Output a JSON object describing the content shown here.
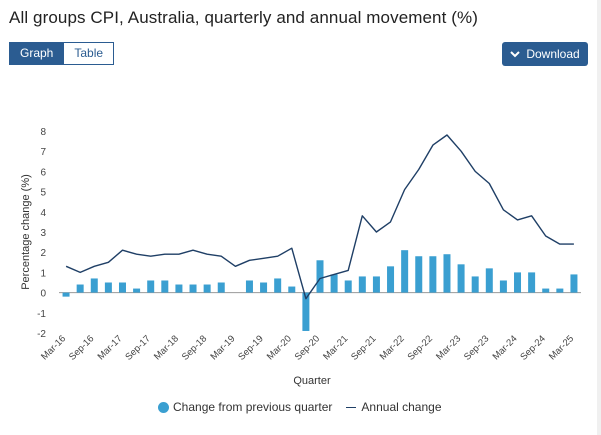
{
  "header": {
    "title": "All groups CPI, Australia, quarterly and annual movement (%)"
  },
  "toggle": {
    "graph_label": "Graph",
    "table_label": "Table"
  },
  "download": {
    "label": "Download",
    "icon": "chevron-down-icon"
  },
  "colors": {
    "accent": "#2b5c91",
    "bar": "#3a9fd1",
    "line": "#1f3f66"
  },
  "chart_data": {
    "type": "bar",
    "ylabel": "Percentage change (%)",
    "xlabel": "Quarter",
    "ylim": [
      -2,
      8
    ],
    "yticks": [
      -2,
      -1,
      0,
      1,
      2,
      3,
      4,
      5,
      6,
      7,
      8
    ],
    "grid": false,
    "legend_position": "bottom",
    "categories": [
      "Mar-16",
      "Jun-16",
      "Sep-16",
      "Dec-16",
      "Mar-17",
      "Jun-17",
      "Sep-17",
      "Dec-17",
      "Mar-18",
      "Jun-18",
      "Sep-18",
      "Dec-18",
      "Mar-19",
      "Jun-19",
      "Sep-19",
      "Dec-19",
      "Mar-20",
      "Jun-20",
      "Sep-20",
      "Dec-20",
      "Mar-21",
      "Jun-21",
      "Sep-21",
      "Dec-21",
      "Mar-22",
      "Jun-22",
      "Sep-22",
      "Dec-22",
      "Mar-23",
      "Jun-23",
      "Sep-23",
      "Dec-23",
      "Mar-24",
      "Jun-24",
      "Sep-24",
      "Dec-24",
      "Mar-25"
    ],
    "tick_labels": [
      "Mar-16",
      "Sep-16",
      "Mar-17",
      "Sep-17",
      "Mar-18",
      "Sep-18",
      "Mar-19",
      "Sep-19",
      "Mar-20",
      "Sep-20",
      "Mar-21",
      "Sep-21",
      "Mar-22",
      "Sep-22",
      "Mar-23",
      "Sep-23",
      "Mar-24",
      "Sep-24",
      "Mar-25"
    ],
    "series": [
      {
        "name": "Change from previous quarter",
        "type": "bar",
        "values": [
          -0.2,
          0.4,
          0.7,
          0.5,
          0.5,
          0.2,
          0.6,
          0.6,
          0.4,
          0.4,
          0.4,
          0.5,
          0.0,
          0.6,
          0.5,
          0.7,
          0.3,
          -1.9,
          1.6,
          0.9,
          0.6,
          0.8,
          0.8,
          1.3,
          2.1,
          1.8,
          1.8,
          1.9,
          1.4,
          0.8,
          1.2,
          0.6,
          1.0,
          1.0,
          0.2,
          0.2,
          0.9
        ]
      },
      {
        "name": "Annual change",
        "type": "line",
        "values": [
          1.3,
          1.0,
          1.3,
          1.5,
          2.1,
          1.9,
          1.8,
          1.9,
          1.9,
          2.1,
          1.9,
          1.8,
          1.3,
          1.6,
          1.7,
          1.8,
          2.2,
          -0.3,
          0.7,
          0.9,
          1.1,
          3.8,
          3.0,
          3.5,
          5.1,
          6.1,
          7.3,
          7.8,
          7.0,
          6.0,
          5.4,
          4.1,
          3.6,
          3.8,
          2.8,
          2.4,
          2.4
        ]
      }
    ]
  }
}
